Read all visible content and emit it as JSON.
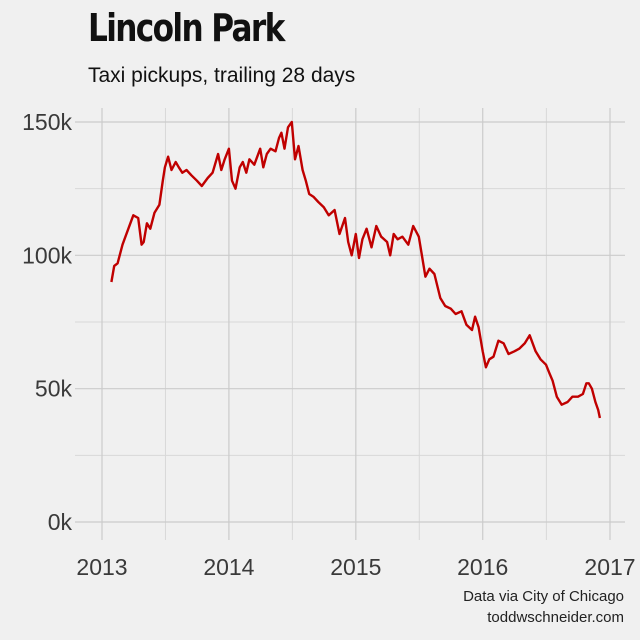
{
  "chart_data": {
    "type": "line",
    "title": "Lincoln Park",
    "subtitle": "Taxi pickups, trailing 28 days",
    "xlabel": "",
    "ylabel": "",
    "x_ticks": [
      "2013",
      "2014",
      "2015",
      "2016",
      "2017"
    ],
    "y_ticks": [
      {
        "value": 0,
        "label": "0k"
      },
      {
        "value": 50000,
        "label": "50k"
      },
      {
        "value": 100000,
        "label": "100k"
      },
      {
        "value": 150000,
        "label": "150k"
      }
    ],
    "xlim": [
      "2013-01-01",
      "2017-01-01"
    ],
    "ylim": [
      0,
      150000
    ],
    "grid": true,
    "line_color": "#c00000",
    "series": [
      {
        "x": [
          "2013-01-28",
          "2013-02-05",
          "2013-02-15",
          "2013-03-01",
          "2013-03-15",
          "2013-04-01",
          "2013-04-15",
          "2013-04-25",
          "2013-05-01",
          "2013-05-10",
          "2013-05-20",
          "2013-06-01",
          "2013-06-15",
          "2013-06-25",
          "2013-07-01",
          "2013-07-10",
          "2013-07-20",
          "2013-08-01",
          "2013-08-10",
          "2013-08-20",
          "2013-09-01",
          "2013-09-15",
          "2013-10-01",
          "2013-10-15",
          "2013-11-01",
          "2013-11-15",
          "2013-12-01",
          "2013-12-10",
          "2013-12-20",
          "2014-01-01",
          "2014-01-10",
          "2014-01-20",
          "2014-02-01",
          "2014-02-10",
          "2014-02-20",
          "2014-03-01",
          "2014-03-15",
          "2014-04-01",
          "2014-04-10",
          "2014-04-20",
          "2014-05-01",
          "2014-05-15",
          "2014-05-25",
          "2014-06-01",
          "2014-06-10",
          "2014-06-20",
          "2014-07-01",
          "2014-07-10",
          "2014-07-20",
          "2014-08-01",
          "2014-08-10",
          "2014-08-20",
          "2014-09-01",
          "2014-09-15",
          "2014-10-01",
          "2014-10-15",
          "2014-11-01",
          "2014-11-15",
          "2014-12-01",
          "2014-12-10",
          "2014-12-20",
          "2015-01-01",
          "2015-01-10",
          "2015-01-20",
          "2015-02-01",
          "2015-02-15",
          "2015-03-01",
          "2015-03-15",
          "2015-04-01",
          "2015-04-10",
          "2015-04-20",
          "2015-05-01",
          "2015-05-15",
          "2015-06-01",
          "2015-06-15",
          "2015-07-01",
          "2015-07-10",
          "2015-07-20",
          "2015-08-01",
          "2015-08-15",
          "2015-09-01",
          "2015-09-15",
          "2015-10-01",
          "2015-10-15",
          "2015-11-01",
          "2015-11-15",
          "2015-12-01",
          "2015-12-10",
          "2015-12-20",
          "2016-01-01",
          "2016-01-10",
          "2016-01-20",
          "2016-02-01",
          "2016-02-15",
          "2016-03-01",
          "2016-03-15",
          "2016-04-01",
          "2016-04-15",
          "2016-05-01",
          "2016-05-15",
          "2016-06-01",
          "2016-06-15",
          "2016-07-01",
          "2016-07-10",
          "2016-07-20",
          "2016-08-01",
          "2016-08-15",
          "2016-09-01",
          "2016-09-15",
          "2016-10-01",
          "2016-10-15",
          "2016-10-25",
          "2016-11-01",
          "2016-11-10",
          "2016-11-20",
          "2016-11-28",
          "2016-12-03"
        ],
        "values": [
          90000,
          96000,
          97000,
          104000,
          109000,
          115000,
          114000,
          104000,
          105000,
          112000,
          110000,
          116000,
          119000,
          128000,
          133000,
          137000,
          132000,
          135000,
          133000,
          131000,
          132000,
          130000,
          128000,
          126000,
          129000,
          131000,
          138000,
          132000,
          136000,
          140000,
          128000,
          125000,
          133000,
          135000,
          131000,
          136000,
          134000,
          140000,
          133000,
          138000,
          140000,
          139000,
          144000,
          146000,
          140000,
          148000,
          150000,
          136000,
          141000,
          132000,
          128000,
          123000,
          122000,
          120000,
          118000,
          115000,
          117000,
          108000,
          114000,
          105000,
          100000,
          108000,
          99000,
          106000,
          110000,
          103000,
          111000,
          107000,
          105000,
          100000,
          108000,
          106000,
          107000,
          104000,
          111000,
          107000,
          100000,
          92000,
          95000,
          93000,
          84000,
          81000,
          80000,
          78000,
          79000,
          74000,
          72000,
          77000,
          73000,
          64000,
          58000,
          61000,
          62000,
          68000,
          67000,
          63000,
          64000,
          65000,
          67000,
          70000,
          64000,
          61000,
          59000,
          56000,
          53000,
          47000,
          44000,
          45000,
          47000,
          47000,
          48000,
          52000,
          52000,
          50000,
          45000,
          42000,
          39000
        ]
      }
    ]
  },
  "credit": {
    "line1": "Data via City of Chicago",
    "line2": "toddwschneider.com"
  }
}
